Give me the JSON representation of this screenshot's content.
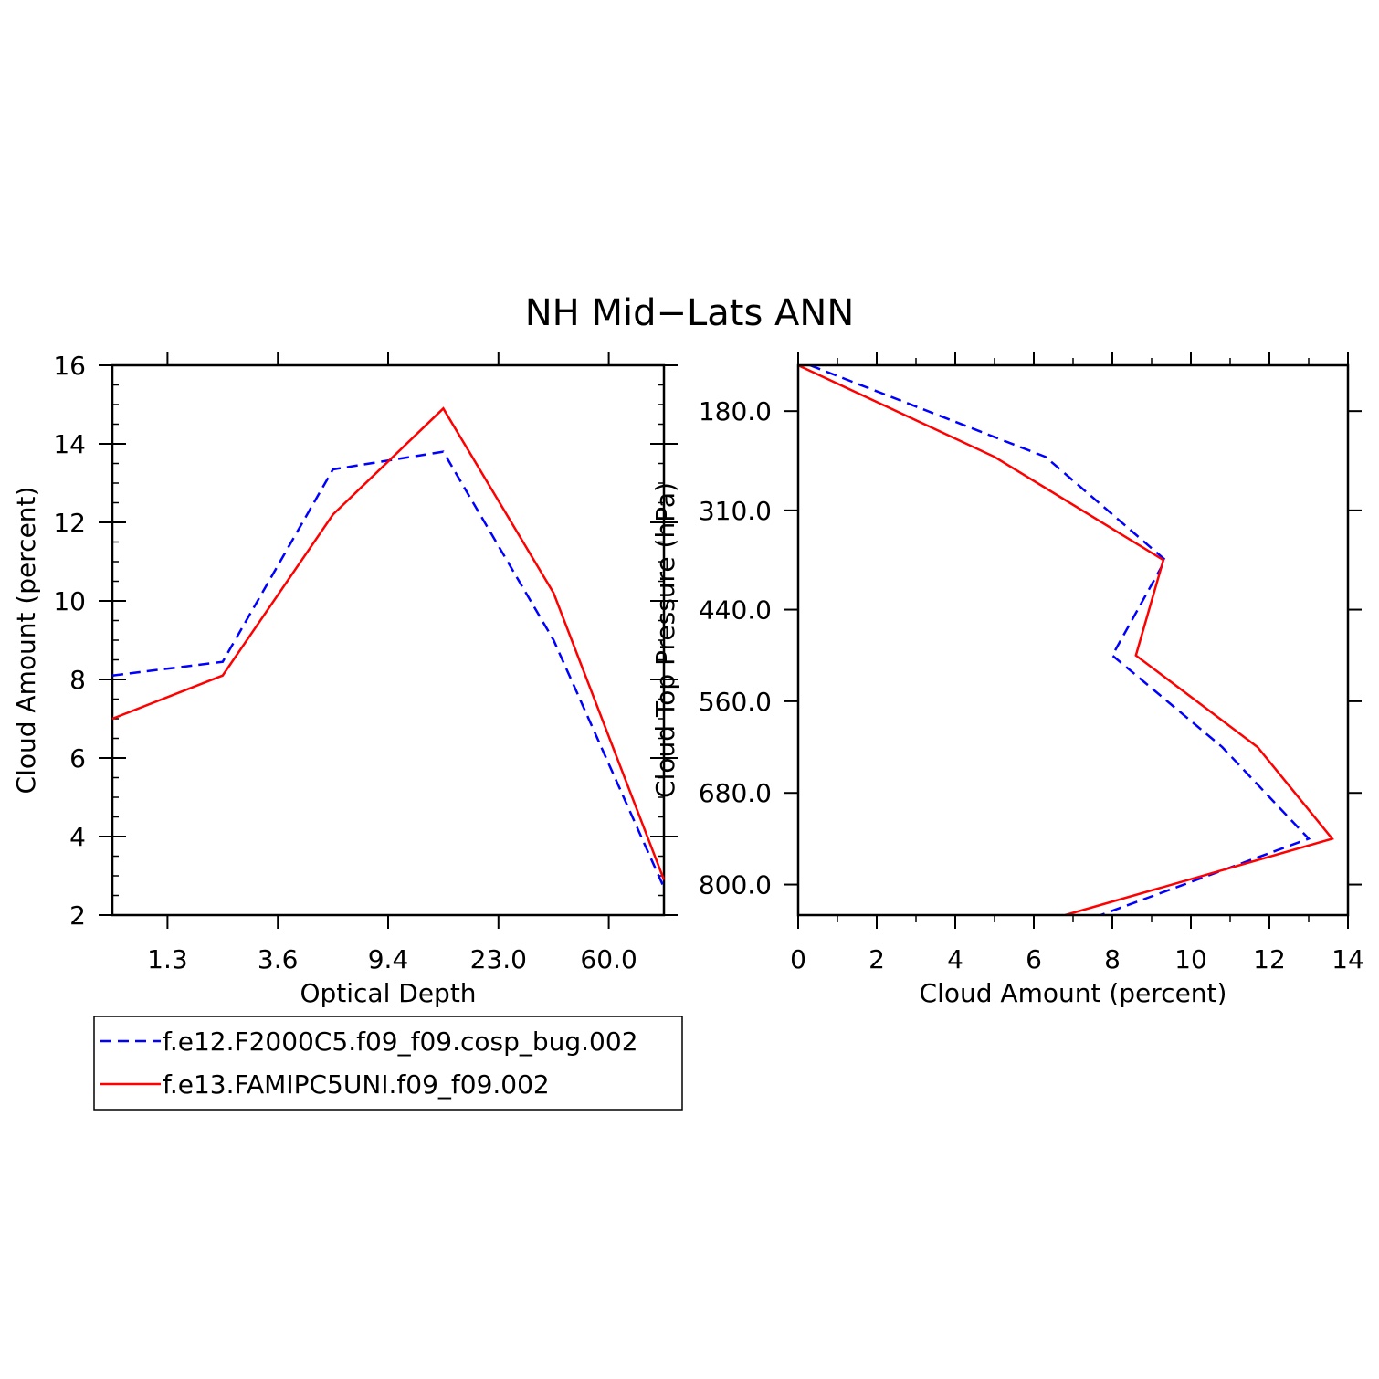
{
  "title": "NH Mid−Lats ANN",
  "colors": {
    "series_a": "#0000ff",
    "series_b": "#ff0000",
    "axis": "#000000"
  },
  "legend": [
    {
      "label": "f.e12.F2000C5.f09_f09.cosp_bug.002",
      "color": "#0000ff",
      "dash": true
    },
    {
      "label": "f.e13.FAMIPC5UNI.f09_f09.002",
      "color": "#ff0000",
      "dash": false
    }
  ],
  "chart_data": [
    {
      "type": "line",
      "title": "NH Mid−Lats ANN",
      "xlabel": "Optical Depth",
      "ylabel": "Cloud Amount (percent)",
      "x_tick_labels": [
        "1.3",
        "3.6",
        "9.4",
        "23.0",
        "60.0"
      ],
      "y_ticks": [
        2,
        4,
        6,
        8,
        10,
        12,
        14,
        16
      ],
      "ylim": [
        2,
        16
      ],
      "x_index_range": [
        0,
        5
      ],
      "x_index": [
        0,
        1,
        2,
        3,
        4,
        5
      ],
      "series": [
        {
          "name": "f.e12.F2000C5.f09_f09.cosp_bug.002",
          "values": [
            8.1,
            8.45,
            13.35,
            13.8,
            9.0,
            2.7
          ]
        },
        {
          "name": "f.e13.FAMIPC5UNI.f09_f09.002",
          "values": [
            7.0,
            8.1,
            12.2,
            14.9,
            10.2,
            2.9
          ]
        }
      ]
    },
    {
      "type": "line",
      "xlabel": "Cloud Amount (percent)",
      "ylabel": "Cloud Top Pressure (hPa)",
      "x_ticks": [
        0,
        2,
        4,
        6,
        8,
        10,
        12,
        14
      ],
      "xlim": [
        0,
        14
      ],
      "y_tick_values": [
        180,
        310,
        440,
        560,
        680,
        800
      ],
      "y_tick_labels": [
        "180.0",
        "310.0",
        "440.0",
        "560.0",
        "680.0",
        "800.0"
      ],
      "ylim": [
        120,
        840
      ],
      "pressure": [
        120,
        240,
        375,
        500,
        620,
        740,
        840
      ],
      "series": [
        {
          "name": "f.e12.F2000C5.f09_f09.cosp_bug.002",
          "values": [
            0.3,
            6.3,
            9.35,
            8.0,
            10.8,
            13.0,
            7.7
          ]
        },
        {
          "name": "f.e13.FAMIPC5UNI.f09_f09.002",
          "values": [
            0.0,
            5.0,
            9.3,
            8.6,
            11.7,
            13.6,
            6.8
          ]
        }
      ]
    }
  ]
}
